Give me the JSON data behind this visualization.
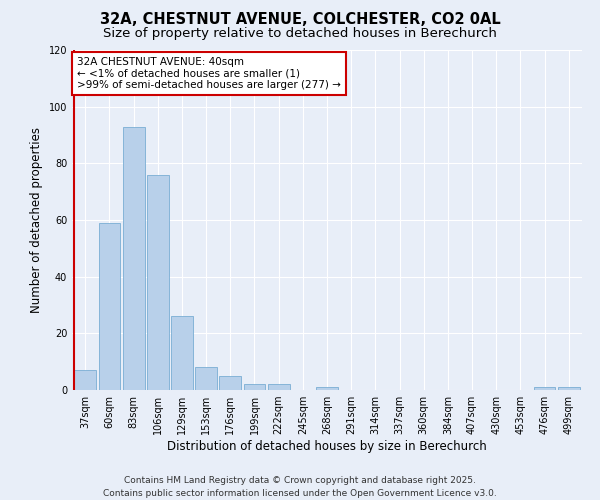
{
  "title_line1": "32A, CHESTNUT AVENUE, COLCHESTER, CO2 0AL",
  "title_line2": "Size of property relative to detached houses in Berechurch",
  "xlabel": "Distribution of detached houses by size in Berechurch",
  "ylabel": "Number of detached properties",
  "categories": [
    "37sqm",
    "60sqm",
    "83sqm",
    "106sqm",
    "129sqm",
    "153sqm",
    "176sqm",
    "199sqm",
    "222sqm",
    "245sqm",
    "268sqm",
    "291sqm",
    "314sqm",
    "337sqm",
    "360sqm",
    "384sqm",
    "407sqm",
    "430sqm",
    "453sqm",
    "476sqm",
    "499sqm"
  ],
  "values": [
    7,
    59,
    93,
    76,
    26,
    8,
    5,
    2,
    2,
    0,
    1,
    0,
    0,
    0,
    0,
    0,
    0,
    0,
    0,
    1,
    1
  ],
  "bar_color": "#b8d0ea",
  "bar_edge_color": "#7aaed4",
  "annotation_box_color": "#ffffff",
  "annotation_border_color": "#cc0000",
  "annotation_line1": "32A CHESTNUT AVENUE: 40sqm",
  "annotation_line2": "← <1% of detached houses are smaller (1)",
  "annotation_line3": ">99% of semi-detached houses are larger (277) →",
  "marker_line_color": "#cc0000",
  "ylim": [
    0,
    120
  ],
  "yticks": [
    0,
    20,
    40,
    60,
    80,
    100,
    120
  ],
  "background_color": "#e8eef8",
  "plot_background": "#e8eef8",
  "grid_color": "#ffffff",
  "footer_line1": "Contains HM Land Registry data © Crown copyright and database right 2025.",
  "footer_line2": "Contains public sector information licensed under the Open Government Licence v3.0.",
  "title_fontsize": 10.5,
  "subtitle_fontsize": 9.5,
  "axis_label_fontsize": 8.5,
  "tick_fontsize": 7,
  "annotation_fontsize": 7.5,
  "footer_fontsize": 6.5
}
